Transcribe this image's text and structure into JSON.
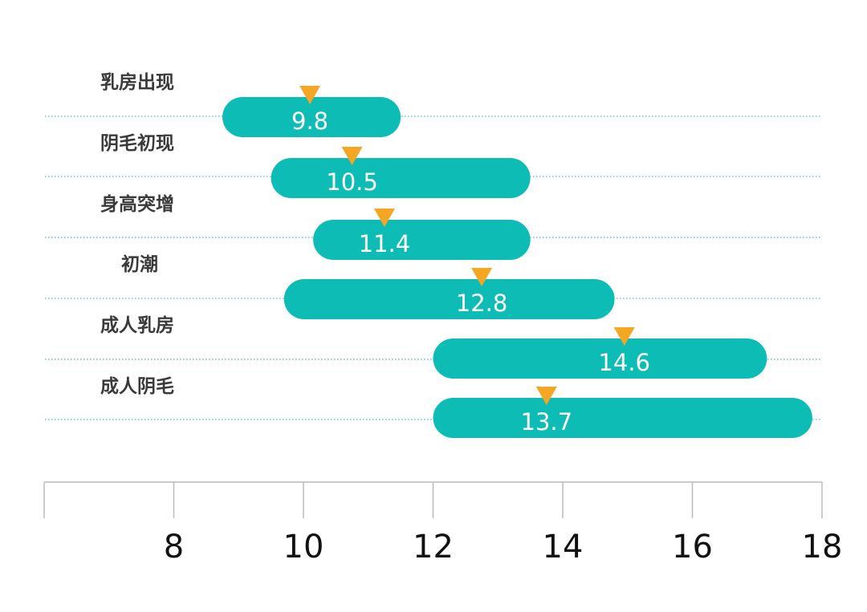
{
  "chart_data": {
    "type": "bar",
    "orientation": "horizontal-range",
    "categories": [
      "乳房出现",
      "阴毛初现",
      "身高突增",
      "初潮",
      "成人乳房",
      "成人阴毛"
    ],
    "ranges": [
      {
        "start": 8.75,
        "end": 11.5
      },
      {
        "start": 9.5,
        "end": 13.5
      },
      {
        "start": 10.15,
        "end": 13.5
      },
      {
        "start": 9.7,
        "end": 14.8
      },
      {
        "start": 12.0,
        "end": 17.15
      },
      {
        "start": 12.0,
        "end": 17.85
      }
    ],
    "values": [
      9.8,
      10.5,
      11.4,
      12.8,
      14.6,
      13.7
    ],
    "value_labels": [
      "9.8",
      "10.5",
      "11.4",
      "12.8",
      "14.6",
      "13.7"
    ],
    "marker_x": [
      10.1,
      10.75,
      11.25,
      12.75,
      14.95,
      13.75
    ],
    "x_ticks": [
      6,
      8,
      10,
      12,
      14,
      16,
      18
    ],
    "x_tick_labels": [
      "8",
      "10",
      "12",
      "14",
      "16",
      "18"
    ],
    "xlim": [
      6,
      18
    ],
    "title": "",
    "xlabel": "",
    "ylabel": "",
    "grid": true,
    "colors": {
      "bar": "#0ebcb6",
      "marker": "#f5a623",
      "grid": "#3fbfb8",
      "axis": "#bbbbbb"
    }
  }
}
